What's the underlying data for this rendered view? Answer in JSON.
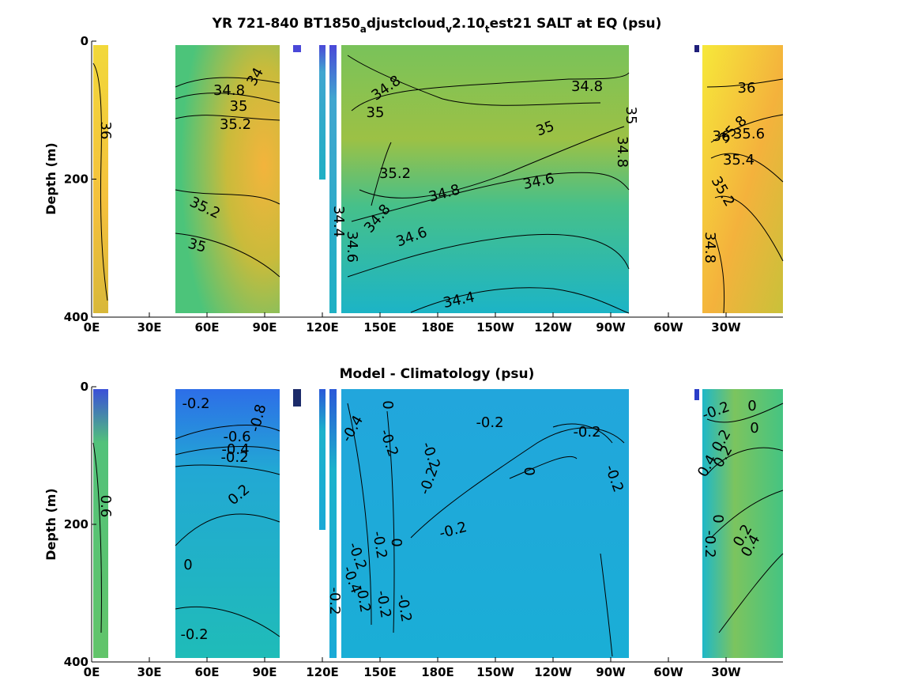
{
  "chart_data": [
    {
      "type": "heatmap",
      "title_parts": [
        "YR 721-840 BT1850",
        "a",
        "djustcloud",
        "v",
        "2.10",
        "t",
        "est21 SALT at EQ (psu)"
      ],
      "ylabel": "Depth (m)",
      "x_tick_labels": [
        "0E",
        "30E",
        "60E",
        "90E",
        "120E",
        "150E",
        "180E",
        "150W",
        "120W",
        "90W",
        "60W",
        "30W"
      ],
      "y_tick_labels": [
        "0",
        "200",
        "400"
      ],
      "ylim": [
        0,
        400
      ],
      "y_reversed": true,
      "colormap": "parula",
      "panels": [
        {
          "range": [
            "0E",
            "8E"
          ],
          "fill": [
            "#f2d83a",
            "#f4c03c",
            "#d8b83a"
          ]
        },
        {
          "range": [
            "43E",
            "97E"
          ],
          "fill": [
            "#4cc47a",
            "#e8b83c",
            "#59c06f"
          ]
        },
        {
          "range": [
            "117E",
            "120E"
          ],
          "fill": [
            "#4a48d8",
            "#5bbd9b",
            "#2dbfb4"
          ]
        },
        {
          "range": [
            "122E",
            "124E"
          ],
          "fill": [
            "#3b3fd0",
            "#2fb9c2",
            "#1fb0c4"
          ]
        },
        {
          "range": [
            "128E",
            "84W"
          ],
          "fill": [
            "#79c25a",
            "#a6bf3a",
            "#1cb4c6"
          ]
        },
        {
          "range": [
            "45W",
            "0W"
          ],
          "fill": [
            "#f6e83a",
            "#f4b23c",
            "#c9c13a"
          ]
        }
      ],
      "contour_labels": [
        "36",
        "34",
        "34.8",
        "35",
        "35.2",
        "35.2",
        "35",
        "34.8",
        "35",
        "34.8",
        "35",
        "35",
        "34.8",
        "35.2",
        "34.8",
        "34.8",
        "34.6",
        "34.4",
        "34.6",
        "34.6",
        "34.4",
        "36",
        "36",
        "35.8",
        "35.6",
        "35.4",
        "35.2",
        "34.8"
      ]
    },
    {
      "type": "heatmap",
      "title": "Model - Climatology (psu)",
      "ylabel": "Depth (m)",
      "x_tick_labels": [
        "0E",
        "30E",
        "60E",
        "90E",
        "120E",
        "150E",
        "180E",
        "150W",
        "120W",
        "90W",
        "60W",
        "30W"
      ],
      "y_tick_labels": [
        "0",
        "200",
        "400"
      ],
      "ylim": [
        0,
        400
      ],
      "y_reversed": true,
      "colormap": "parula",
      "panels": [
        {
          "range": [
            "0E",
            "8E"
          ],
          "fill": [
            "#3a7fe8",
            "#4cc47a",
            "#62c46a"
          ]
        },
        {
          "range": [
            "43E",
            "97E"
          ],
          "fill": [
            "#2d84e8",
            "#27b4c6",
            "#1fbcb8"
          ]
        },
        {
          "range": [
            "117E",
            "120E"
          ],
          "fill": [
            "#2d6ee0",
            "#1fb0d0",
            "#1aa8d8"
          ]
        },
        {
          "range": [
            "122E",
            "124E"
          ],
          "fill": [
            "#2a70e0",
            "#1cb2cc",
            "#1aaad6"
          ]
        },
        {
          "range": [
            "128E",
            "84W"
          ],
          "fill": [
            "#1aaee0",
            "#19b0d8",
            "#1aaed6"
          ]
        },
        {
          "range": [
            "45W",
            "0W"
          ],
          "fill": [
            "#1fb8c8",
            "#7cc45e",
            "#45c482"
          ]
        }
      ],
      "contour_labels": [
        "0.6",
        "-0.8",
        "-0.6",
        "-0.4",
        "-0.2",
        "0.2",
        "0",
        "-0.2",
        "-0.4",
        "0",
        "-0.2",
        "-0.2",
        "-0.2",
        "0",
        "-0.2",
        "-0.2",
        "-0.2",
        "0",
        "-0.2",
        "-0.2",
        "-0.4",
        "-0.2",
        "-0.2",
        "-0.2",
        "-0.2",
        "0",
        "-0.2",
        "0",
        "0.2",
        "0.4",
        "0.2",
        "0",
        "-0.2",
        "0.2",
        "0.4",
        "-0.2",
        "-0.2"
      ]
    }
  ]
}
